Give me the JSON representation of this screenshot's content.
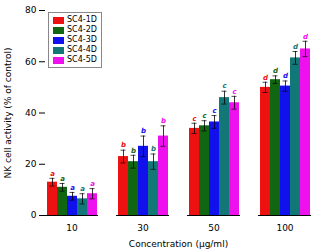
{
  "chart_data": {
    "type": "bar",
    "xlabel": "Concentration (μg/ml)",
    "ylabel": "NK cell activity (% of control)",
    "categories": [
      "10",
      "30",
      "50",
      "100"
    ],
    "series": [
      {
        "name": "SC4-1D",
        "color": "#EE1111",
        "values": [
          13,
          23,
          34,
          50
        ],
        "errors": [
          1.5,
          2.5,
          2.0,
          2.0
        ],
        "letter_labels": [
          "a",
          "b",
          "c",
          "d"
        ]
      },
      {
        "name": "SC4-2D",
        "color": "#116611",
        "values": [
          11,
          21,
          35,
          53
        ],
        "errors": [
          1.5,
          2.5,
          2.0,
          1.5
        ],
        "letter_labels": [
          "a",
          "b",
          "c",
          "d"
        ]
      },
      {
        "name": "SC4-3D",
        "color": "#1111EE",
        "values": [
          7.5,
          27,
          36.5,
          50.5
        ],
        "errors": [
          1.5,
          4.0,
          2.5,
          2.0
        ],
        "letter_labels": [
          "a",
          "b",
          "c",
          "d"
        ]
      },
      {
        "name": "SC4-4D",
        "color": "#117777",
        "values": [
          6.5,
          21,
          46,
          61.5
        ],
        "errors": [
          2.0,
          3.0,
          2.5,
          2.5
        ],
        "letter_labels": [
          "a",
          "b",
          "c",
          "d"
        ]
      },
      {
        "name": "SC4-5D",
        "color": "#EE11EE",
        "values": [
          8.5,
          31,
          44,
          65
        ],
        "errors": [
          2.0,
          4.0,
          2.5,
          3.0
        ],
        "letter_labels": [
          "a",
          "b",
          "c",
          "d"
        ]
      }
    ],
    "ylim": [
      0,
      80
    ],
    "yticks": [
      0,
      20,
      40,
      60,
      80
    ],
    "grid": false,
    "legend": "upper left"
  }
}
